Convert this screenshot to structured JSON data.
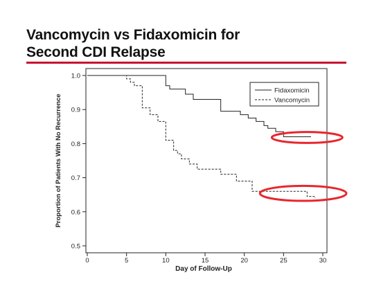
{
  "slide": {
    "title_line1": "Vancomycin vs Fidaxomicin for",
    "title_line2": "Second CDI Relapse",
    "accent_color": "#c8102e"
  },
  "chart_data": {
    "type": "line",
    "step": true,
    "xlabel": "Day of Follow-Up",
    "ylabel": "Proportion of Patients With No Recurrence",
    "xlim": [
      0,
      30
    ],
    "ylim": [
      0.5,
      1.0
    ],
    "xticks": [
      0,
      5,
      10,
      15,
      20,
      25,
      30
    ],
    "yticks": [
      0.5,
      0.6,
      0.7,
      0.8,
      0.9,
      1.0
    ],
    "ytick_labels": [
      "0.5",
      "0.6",
      "0.7",
      "0.8",
      "0.9",
      "1.0"
    ],
    "grid": false,
    "legend": "top-right",
    "series": [
      {
        "name": "Fidaxomicin",
        "style": "solid",
        "x": [
          0,
          10,
          10.5,
          11,
          12.5,
          13.5,
          14,
          17,
          19.5,
          20.5,
          21.5,
          22.5,
          23,
          24,
          25,
          28.5
        ],
        "y": [
          1.0,
          0.97,
          0.96,
          0.96,
          0.945,
          0.93,
          0.93,
          0.895,
          0.885,
          0.875,
          0.865,
          0.853,
          0.845,
          0.835,
          0.82,
          0.82
        ]
      },
      {
        "name": "Vancomycin",
        "style": "dashed",
        "x": [
          0,
          5,
          5.5,
          6,
          7,
          8,
          9,
          10,
          11,
          11.5,
          12,
          13,
          14,
          17,
          19,
          21,
          22,
          28,
          29
        ],
        "y": [
          1.0,
          0.99,
          0.98,
          0.97,
          0.905,
          0.885,
          0.865,
          0.81,
          0.78,
          0.77,
          0.755,
          0.74,
          0.725,
          0.71,
          0.69,
          0.66,
          0.66,
          0.645,
          0.64
        ]
      }
    ],
    "highlights": [
      {
        "color": "#e8262d",
        "cx": 28,
        "cy": 0.818,
        "rx": 4.5,
        "ry": 0.016
      },
      {
        "color": "#e8262d",
        "cx": 27.5,
        "cy": 0.654,
        "rx": 5.5,
        "ry": 0.022
      }
    ]
  }
}
